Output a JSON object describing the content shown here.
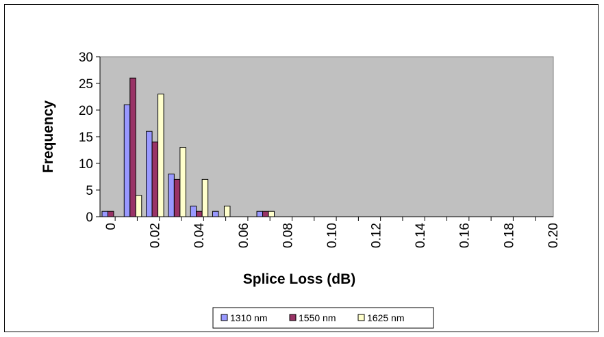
{
  "chart_data": {
    "type": "bar",
    "title": "",
    "xlabel": "Splice Loss (dB)",
    "ylabel": "Frequency",
    "ylim": [
      0,
      30
    ],
    "yticks": [
      "0",
      "5",
      "10",
      "15",
      "20",
      "25",
      "30"
    ],
    "x_tick_labels": [
      "0",
      "0.02",
      "0.04",
      "0.06",
      "0.08",
      "0.10",
      "0.12",
      "0.14",
      "0.16",
      "0.18",
      "0.20"
    ],
    "categories": [
      "0",
      "0.01",
      "0.02",
      "0.03",
      "0.04",
      "0.05",
      "0.06",
      "0.07",
      "0.08",
      "0.09",
      "0.10",
      "0.11",
      "0.12",
      "0.13",
      "0.14",
      "0.15",
      "0.16",
      "0.17",
      "0.18",
      "0.19",
      "0.20"
    ],
    "series": [
      {
        "name": "1310 nm",
        "color": "#9999ff",
        "values": [
          1,
          21,
          16,
          8,
          2,
          1,
          0,
          1,
          0,
          0,
          0,
          0,
          0,
          0,
          0,
          0,
          0,
          0,
          0,
          0,
          0
        ]
      },
      {
        "name": "1550 nm",
        "color": "#993366",
        "values": [
          1,
          26,
          14,
          7,
          1,
          0,
          0,
          1,
          0,
          0,
          0,
          0,
          0,
          0,
          0,
          0,
          0,
          0,
          0,
          0,
          0
        ]
      },
      {
        "name": "1625 nm",
        "color": "#ffffcc",
        "values": [
          0,
          4,
          23,
          13,
          7,
          2,
          0,
          1,
          0,
          0,
          0,
          0,
          0,
          0,
          0,
          0,
          0,
          0,
          0,
          0,
          0
        ]
      }
    ],
    "plot_background": "#c0c0c0",
    "grid": false,
    "legend_position": "bottom"
  }
}
